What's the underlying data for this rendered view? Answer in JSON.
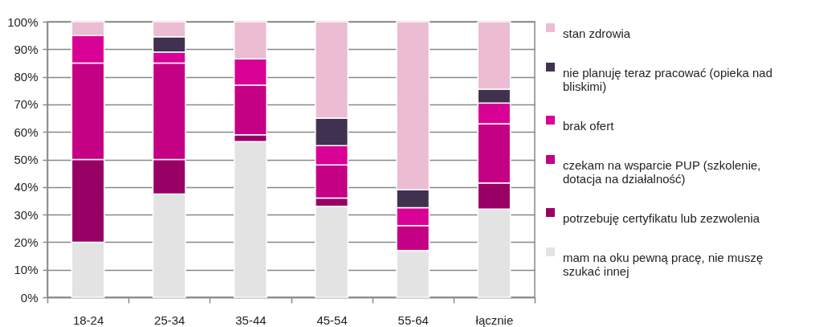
{
  "chart_data": {
    "type": "bar",
    "stacked": true,
    "categories": [
      "18-24",
      "25-34",
      "35-44",
      "45-54",
      "55-64",
      "łącznie"
    ],
    "series": [
      {
        "name": "mam na oku pewną pracę, nie muszę szukać innej",
        "color": "#e3e3e3",
        "values": [
          20,
          37.5,
          56.5,
          33,
          17,
          32
        ]
      },
      {
        "name": "potrzebuję certyfikatu lub zezwolenia",
        "color": "#990066",
        "values": [
          30,
          12.5,
          2.5,
          3,
          0,
          9.5
        ]
      },
      {
        "name": "czekam na wsparcie PUP (szkolenie, dotacja na działalność)",
        "color": "#c40084",
        "values": [
          35,
          35,
          18,
          12,
          9,
          21.5
        ]
      },
      {
        "name": "brak ofert",
        "color": "#d90095",
        "values": [
          10,
          4,
          9.5,
          7,
          6.5,
          7.5
        ]
      },
      {
        "name": "nie planuję teraz pracować (opieka nad bliskimi)",
        "color": "#403150",
        "values": [
          0,
          5.5,
          0,
          10,
          6.5,
          5
        ]
      },
      {
        "name": "stan zdrowia",
        "color": "#ecbcd3",
        "values": [
          5,
          5.5,
          13.5,
          35,
          61,
          24.5
        ]
      }
    ],
    "ylim": [
      0,
      100
    ],
    "yticks": [
      {
        "value": 0,
        "label": "0%"
      },
      {
        "value": 10,
        "label": "10%"
      },
      {
        "value": 20,
        "label": "20%"
      },
      {
        "value": 30,
        "label": "30%"
      },
      {
        "value": 40,
        "label": "40%"
      },
      {
        "value": 50,
        "label": "50%"
      },
      {
        "value": 60,
        "label": "60%"
      },
      {
        "value": 70,
        "label": "70%"
      },
      {
        "value": 80,
        "label": "80%"
      },
      {
        "value": 90,
        "label": "90%"
      },
      {
        "value": 100,
        "label": "100%"
      }
    ],
    "grid": "y",
    "legend": "right"
  }
}
